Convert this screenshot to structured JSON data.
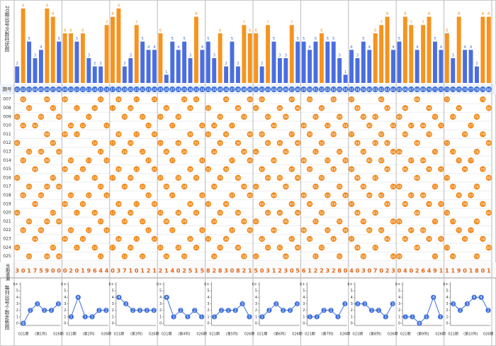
{
  "side_labels": {
    "bar": "20期出号次数柱状图",
    "issue": "期号",
    "omission": "当期遗漏",
    "trend": "每列出号个数走势图"
  },
  "chart_data": [
    {
      "type": "bar",
      "categories": [
        "01",
        "02",
        "03",
        "04",
        "05",
        "06",
        "07",
        "08",
        "09",
        "10",
        "11",
        "12",
        "13",
        "14",
        "15",
        "16",
        "17",
        "18",
        "19",
        "20",
        "21",
        "22",
        "23",
        "24",
        "25",
        "26",
        "27",
        "28",
        "29",
        "30",
        "31",
        "32",
        "33",
        "34",
        "35",
        "36",
        "37",
        "38",
        "39",
        "40",
        "41",
        "42",
        "43",
        "44",
        "45",
        "46",
        "47",
        "48",
        "49",
        "50",
        "51",
        "52",
        "53",
        "54",
        "55",
        "56",
        "57",
        "58",
        "59",
        "60",
        "61",
        "62",
        "63",
        "64",
        "65",
        "66",
        "67",
        "68",
        "69",
        "70",
        "71",
        "72",
        "73",
        "74",
        "75",
        "76",
        "77",
        "78",
        "79",
        "80"
      ],
      "values": [
        2,
        9,
        5,
        3,
        4,
        9,
        8,
        5,
        6,
        6,
        5,
        6,
        3,
        2,
        2,
        7,
        8,
        9,
        2,
        3,
        7,
        5,
        4,
        4,
        6,
        1,
        5,
        4,
        5,
        3,
        8,
        4,
        5,
        3,
        6,
        2,
        5,
        2,
        7,
        6,
        6,
        2,
        7,
        5,
        3,
        3,
        7,
        5,
        5,
        4,
        5,
        6,
        5,
        5,
        3,
        1,
        4,
        3,
        5,
        4,
        6,
        7,
        8,
        4,
        5,
        8,
        7,
        4,
        7,
        8,
        5,
        4,
        6,
        3,
        8,
        4,
        4,
        2,
        8,
        8
      ],
      "colors": [
        "#4a6ee0",
        "#f7931e",
        "#4a6ee0",
        "#4a6ee0",
        "#4a6ee0",
        "#f7931e",
        "#f7931e",
        "#4a6ee0",
        "#f7931e",
        "#f7931e",
        "#4a6ee0",
        "#f7931e",
        "#4a6ee0",
        "#4a6ee0",
        "#4a6ee0",
        "#f7931e",
        "#f7931e",
        "#f7931e",
        "#4a6ee0",
        "#4a6ee0",
        "#f7931e",
        "#4a6ee0",
        "#4a6ee0",
        "#4a6ee0",
        "#f7931e",
        "#4a6ee0",
        "#4a6ee0",
        "#4a6ee0",
        "#4a6ee0",
        "#4a6ee0",
        "#f7931e",
        "#4a6ee0",
        "#4a6ee0",
        "#4a6ee0",
        "#f7931e",
        "#4a6ee0",
        "#4a6ee0",
        "#4a6ee0",
        "#f7931e",
        "#f7931e",
        "#f7931e",
        "#4a6ee0",
        "#f7931e",
        "#4a6ee0",
        "#4a6ee0",
        "#4a6ee0",
        "#f7931e",
        "#4a6ee0",
        "#4a6ee0",
        "#4a6ee0",
        "#4a6ee0",
        "#f7931e",
        "#4a6ee0",
        "#4a6ee0",
        "#4a6ee0",
        "#4a6ee0",
        "#4a6ee0",
        "#4a6ee0",
        "#4a6ee0",
        "#4a6ee0",
        "#f7931e",
        "#f7931e",
        "#f7931e",
        "#4a6ee0",
        "#4a6ee0",
        "#f7931e",
        "#f7931e",
        "#4a6ee0",
        "#f7931e",
        "#f7931e",
        "#4a6ee0",
        "#4a6ee0",
        "#f7931e",
        "#4a6ee0",
        "#f7931e",
        "#4a6ee0",
        "#4a6ee0",
        "#4a6ee0",
        "#f7931e",
        "#f7931e"
      ],
      "ylim": [
        0,
        9
      ]
    },
    {
      "type": "line",
      "categories": [
        "021期",
        null,
        null,
        null,
        null,
        "026期"
      ],
      "subtitle": "(第1列)",
      "values": [
        0,
        2,
        3,
        2,
        2,
        3
      ],
      "color": "#3d6fdc",
      "ylim": [
        0,
        6
      ],
      "yticks": [
        0,
        1,
        2,
        3,
        4,
        5,
        {
          "value": 6,
          "label": "6+"
        }
      ]
    },
    {
      "type": "line",
      "categories": [
        "021期",
        null,
        null,
        null,
        null,
        "026期"
      ],
      "subtitle": "(第2列)",
      "values": [
        1,
        4,
        1,
        1,
        2,
        2
      ],
      "color": "#3d6fdc",
      "ylim": [
        0,
        6
      ],
      "yticks": [
        0,
        1,
        2,
        3,
        4,
        5,
        {
          "value": 6,
          "label": "6+"
        }
      ]
    },
    {
      "type": "line",
      "categories": [
        "021期",
        null,
        null,
        null,
        null,
        "026期"
      ],
      "subtitle": "(第3列)",
      "values": [
        4,
        3,
        2,
        2,
        2,
        2
      ],
      "color": "#3d6fdc",
      "ylim": [
        0,
        6
      ],
      "yticks": [
        0,
        1,
        2,
        3,
        4,
        5,
        {
          "value": 6,
          "label": "6+"
        }
      ]
    },
    {
      "type": "line",
      "categories": [
        "021期",
        null,
        null,
        null,
        null,
        "026期"
      ],
      "subtitle": "(第4列)",
      "values": [
        4,
        1,
        2,
        1,
        2,
        1
      ],
      "color": "#3d6fdc",
      "ylim": [
        0,
        6
      ],
      "yticks": [
        0,
        1,
        2,
        3,
        4,
        5,
        {
          "value": 6,
          "label": "6+"
        }
      ]
    },
    {
      "type": "line",
      "categories": [
        "021期",
        null,
        null,
        null,
        null,
        "026期"
      ],
      "subtitle": "(第5列)",
      "values": [
        1,
        2,
        2,
        2,
        3,
        1
      ],
      "color": "#3d6fdc",
      "ylim": [
        0,
        6
      ],
      "yticks": [
        0,
        1,
        2,
        3,
        4,
        5,
        {
          "value": 6,
          "label": "6+"
        }
      ]
    },
    {
      "type": "line",
      "categories": [
        "021期",
        null,
        null,
        null,
        null,
        "026期"
      ],
      "subtitle": "(第6列)",
      "values": [
        1,
        2,
        3,
        2,
        2,
        3
      ],
      "color": "#3d6fdc",
      "ylim": [
        0,
        6
      ],
      "yticks": [
        0,
        1,
        2,
        3,
        4,
        5,
        {
          "value": 6,
          "label": "6+"
        }
      ]
    },
    {
      "type": "line",
      "categories": [
        "021期",
        null,
        null,
        null,
        null,
        "026期"
      ],
      "subtitle": "(第7列)",
      "values": [
        1,
        1,
        2,
        2,
        1,
        3
      ],
      "color": "#3d6fdc",
      "ylim": [
        0,
        6
      ],
      "yticks": [
        0,
        1,
        2,
        3,
        4,
        5,
        {
          "value": 6,
          "label": "6+"
        }
      ]
    },
    {
      "type": "line",
      "categories": [
        "021期",
        null,
        null,
        null,
        null,
        "026期"
      ],
      "subtitle": "(第8列)",
      "values": [
        3,
        3,
        2,
        2,
        1,
        3
      ],
      "color": "#3d6fdc",
      "ylim": [
        0,
        6
      ],
      "yticks": [
        0,
        1,
        2,
        3,
        4,
        5,
        {
          "value": 6,
          "label": "6+"
        }
      ]
    },
    {
      "type": "line",
      "categories": [
        "021期",
        null,
        null,
        null,
        null,
        "026期"
      ],
      "subtitle": "(第9列)",
      "values": [
        1,
        1,
        0,
        1,
        4,
        1
      ],
      "color": "#3d6fdc",
      "ylim": [
        0,
        6
      ],
      "yticks": [
        0,
        1,
        2,
        3,
        4,
        5,
        {
          "value": 6,
          "label": "6+"
        }
      ]
    },
    {
      "type": "line",
      "categories": [
        "021期",
        null,
        null,
        null,
        null,
        "026期"
      ],
      "subtitle": "(第10列)",
      "values": [
        3,
        2,
        3,
        4,
        4,
        2
      ],
      "color": "#3d6fdc",
      "ylim": [
        0,
        6
      ],
      "yticks": [
        0,
        1,
        2,
        3,
        4,
        5,
        {
          "value": 6,
          "label": "6+"
        }
      ]
    }
  ],
  "draws": {
    "issues": [
      "007",
      "008",
      "009",
      "010",
      "011",
      "012",
      "013",
      "014",
      "015",
      "016",
      "017",
      "018",
      "019",
      "020",
      "021",
      "022",
      "023",
      "024",
      "025"
    ],
    "ball_color": "#f08a1c",
    "numbers": [
      [
        "02",
        "06",
        "09",
        "15",
        "18",
        "21",
        "24",
        "29",
        "31",
        "36",
        "40",
        "42",
        "47",
        "50",
        "54",
        "57",
        "62",
        "68",
        "73",
        "79"
      ],
      [
        "03",
        "07",
        "11",
        "14",
        "17",
        "20",
        "26",
        "30",
        "33",
        "38",
        "41",
        "45",
        "48",
        "52",
        "58",
        "63",
        "66",
        "70",
        "75",
        "80"
      ],
      [
        "01",
        "05",
        "08",
        "13",
        "19",
        "22",
        "25",
        "28",
        "35",
        "39",
        "43",
        "46",
        "51",
        "55",
        "59",
        "61",
        "65",
        "71",
        "74",
        "78"
      ],
      [
        "02",
        "04",
        "10",
        "12",
        "16",
        "23",
        "27",
        "32",
        "34",
        "37",
        "44",
        "49",
        "53",
        "56",
        "60",
        "64",
        "67",
        "69",
        "72",
        "77"
      ],
      [
        "06",
        "09",
        "11",
        "18",
        "21",
        "24",
        "30",
        "33",
        "36",
        "40",
        "42",
        "47",
        "50",
        "54",
        "57",
        "62",
        "66",
        "70",
        "76",
        "79"
      ],
      [
        "01",
        "07",
        "14",
        "17",
        "20",
        "25",
        "28",
        "31",
        "35",
        "38",
        "43",
        "45",
        "48",
        "52",
        "58",
        "61",
        "63",
        "68",
        "73",
        "80"
      ],
      [
        "03",
        "05",
        "08",
        "15",
        "19",
        "22",
        "26",
        "29",
        "34",
        "39",
        "41",
        "46",
        "51",
        "55",
        "59",
        "64",
        "65",
        "71",
        "74",
        "78"
      ],
      [
        "02",
        "06",
        "10",
        "13",
        "16",
        "23",
        "27",
        "32",
        "37",
        "40",
        "44",
        "49",
        "53",
        "56",
        "60",
        "62",
        "67",
        "69",
        "75",
        "77"
      ],
      [
        "04",
        "09",
        "12",
        "18",
        "21",
        "24",
        "30",
        "33",
        "36",
        "42",
        "47",
        "50",
        "54",
        "57",
        "63",
        "66",
        "70",
        "72",
        "76",
        "79"
      ],
      [
        "01",
        "07",
        "11",
        "14",
        "17",
        "20",
        "25",
        "28",
        "31",
        "35",
        "38",
        "43",
        "45",
        "48",
        "52",
        "58",
        "61",
        "68",
        "73",
        "80"
      ],
      [
        "03",
        "06",
        "08",
        "15",
        "19",
        "22",
        "26",
        "29",
        "34",
        "39",
        "41",
        "46",
        "51",
        "55",
        "59",
        "64",
        "65",
        "71",
        "74",
        "78"
      ],
      [
        "02",
        "05",
        "10",
        "13",
        "16",
        "23",
        "27",
        "32",
        "37",
        "40",
        "44",
        "49",
        "53",
        "56",
        "60",
        "62",
        "67",
        "69",
        "75",
        "77"
      ],
      [
        "04",
        "09",
        "12",
        "18",
        "21",
        "24",
        "30",
        "33",
        "36",
        "42",
        "47",
        "50",
        "54",
        "57",
        "63",
        "66",
        "70",
        "72",
        "76",
        "79"
      ],
      [
        "01",
        "07",
        "11",
        "14",
        "17",
        "20",
        "25",
        "28",
        "31",
        "35",
        "38",
        "43",
        "45",
        "48",
        "52",
        "58",
        "61",
        "68",
        "73",
        "80"
      ],
      [
        "03",
        "06",
        "08",
        "15",
        "19",
        "22",
        "26",
        "29",
        "34",
        "39",
        "41",
        "46",
        "51",
        "55",
        "59",
        "64",
        "65",
        "71",
        "74",
        "78"
      ],
      [
        "02",
        "05",
        "10",
        "13",
        "16",
        "23",
        "27",
        "32",
        "37",
        "40",
        "44",
        "49",
        "53",
        "56",
        "60",
        "62",
        "67",
        "69",
        "75",
        "77"
      ],
      [
        "04",
        "09",
        "12",
        "18",
        "21",
        "24",
        "30",
        "33",
        "36",
        "42",
        "47",
        "50",
        "54",
        "57",
        "63",
        "66",
        "70",
        "72",
        "76",
        "79"
      ],
      [
        "01",
        "07",
        "11",
        "14",
        "17",
        "20",
        "25",
        "28",
        "31",
        "35",
        "38",
        "43",
        "45",
        "48",
        "52",
        "58",
        "61",
        "68",
        "73",
        "80"
      ],
      [
        "03",
        "06",
        "08",
        "15",
        "19",
        "22",
        "26",
        "29",
        "34",
        "39",
        "41",
        "46",
        "51",
        "55",
        "59",
        "64",
        "65",
        "71",
        "74",
        "78"
      ]
    ]
  },
  "omission": [
    3,
    0,
    1,
    7,
    5,
    9,
    0,
    0,
    0,
    2,
    0,
    1,
    9,
    6,
    4,
    4,
    0,
    3,
    7,
    1,
    0,
    1,
    2,
    1,
    2,
    1,
    4,
    0,
    2,
    5,
    1,
    5,
    8,
    2,
    8,
    3,
    0,
    8,
    2,
    1,
    5,
    0,
    3,
    1,
    2,
    3,
    0,
    5,
    6,
    1,
    2,
    2,
    3,
    2,
    8,
    0,
    4,
    0,
    3,
    0,
    7,
    0,
    2,
    3,
    0,
    4,
    0,
    2,
    6,
    4,
    9,
    1,
    1,
    1,
    9,
    0,
    1,
    8,
    0,
    1
  ]
}
